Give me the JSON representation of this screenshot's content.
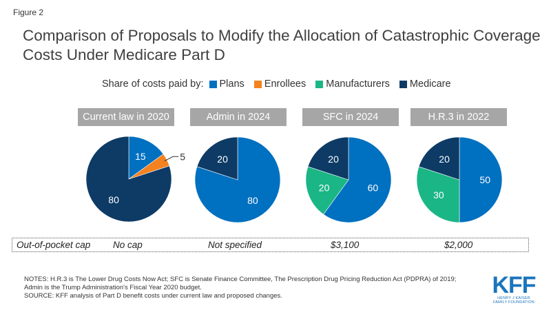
{
  "figure_label": "Figure 2",
  "title": "Comparison of Proposals to Modify the Allocation of Catastrophic Coverage Costs Under Medicare Part D",
  "legend": {
    "lead": "Share of costs paid by:",
    "items": [
      {
        "label": "Plans",
        "color": "#0070c0"
      },
      {
        "label": "Enrollees",
        "color": "#f58220"
      },
      {
        "label": "Manufacturers",
        "color": "#1bb685"
      },
      {
        "label": "Medicare",
        "color": "#0d3b66"
      }
    ]
  },
  "chart_data": {
    "type": "pie",
    "unit": "percent",
    "charts": [
      {
        "title": "Current law in 2020",
        "slices": [
          {
            "series": "Plans",
            "value": 15
          },
          {
            "series": "Enrollees",
            "value": 5
          },
          {
            "series": "Manufacturers",
            "value": 0
          },
          {
            "series": "Medicare",
            "value": 80
          }
        ]
      },
      {
        "title": "Admin in 2024",
        "slices": [
          {
            "series": "Plans",
            "value": 80
          },
          {
            "series": "Enrollees",
            "value": 0
          },
          {
            "series": "Manufacturers",
            "value": 0
          },
          {
            "series": "Medicare",
            "value": 20
          }
        ]
      },
      {
        "title": "SFC in 2024",
        "slices": [
          {
            "series": "Plans",
            "value": 60
          },
          {
            "series": "Enrollees",
            "value": 0
          },
          {
            "series": "Manufacturers",
            "value": 20
          },
          {
            "series": "Medicare",
            "value": 20
          }
        ]
      },
      {
        "title": "H.R.3 in 2022",
        "slices": [
          {
            "series": "Plans",
            "value": 50
          },
          {
            "series": "Enrollees",
            "value": 0
          },
          {
            "series": "Manufacturers",
            "value": 30
          },
          {
            "series": "Medicare",
            "value": 20
          }
        ]
      }
    ]
  },
  "oop": {
    "label": "Out-of-pocket cap",
    "values": [
      "No cap",
      "Not specified",
      "$3,100",
      "$2,000"
    ]
  },
  "notes": {
    "line1": "NOTES: H.R.3 is The Lower Drug Costs Now Act; SFC is Senate Finance Committee, The Prescription Drug Pricing Reduction Act (PDPRA) of 2019; Admin is the Trump Administration's Fiscal Year 2020 budget.",
    "line2": "SOURCE: KFF analysis of Part D benefit costs under current law and proposed changes."
  },
  "logo": {
    "mark": "KFF",
    "sub1": "HENRY J KAISER",
    "sub2": "FAMILY FOUNDATION"
  }
}
